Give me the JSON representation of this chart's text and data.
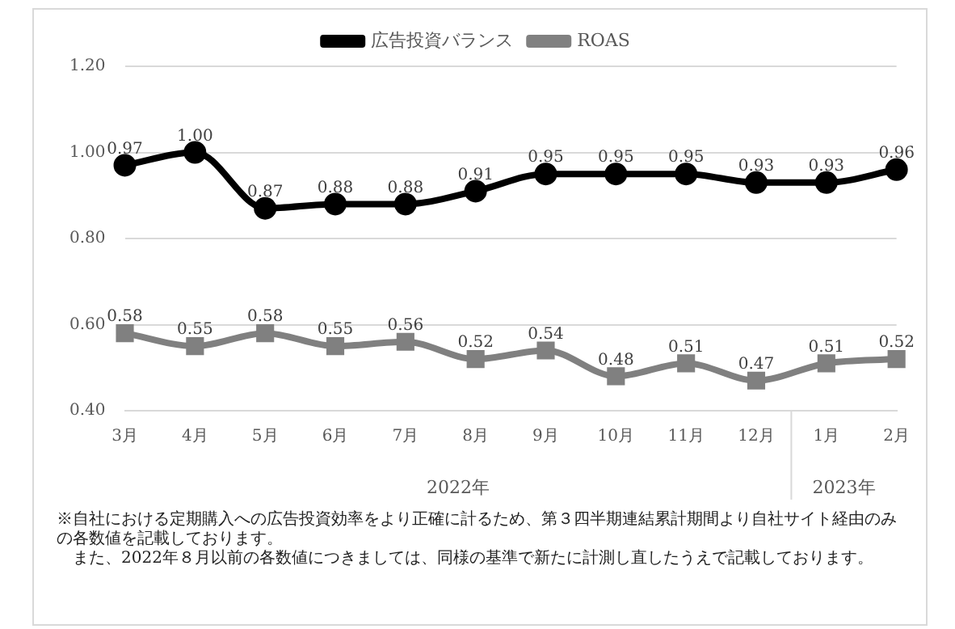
{
  "chart_data": {
    "type": "line",
    "categories": [
      "3月",
      "4月",
      "5月",
      "6月",
      "7月",
      "8月",
      "9月",
      "10月",
      "11月",
      "12月",
      "1月",
      "2月"
    ],
    "series": [
      {
        "name": "広告投資バランス",
        "color": "#000000",
        "marker": "circle",
        "values": [
          0.97,
          1.0,
          0.87,
          0.88,
          0.88,
          0.91,
          0.95,
          0.95,
          0.95,
          0.93,
          0.93,
          0.96
        ],
        "value_labels": [
          "0.97",
          "1.00",
          "0.87",
          "0.88",
          "0.88",
          "0.91",
          "0.95",
          "0.95",
          "0.95",
          "0.93",
          "0.93",
          "0.96"
        ]
      },
      {
        "name": "ROAS",
        "color": "#808080",
        "marker": "square",
        "values": [
          0.58,
          0.55,
          0.58,
          0.55,
          0.56,
          0.52,
          0.54,
          0.48,
          0.51,
          0.47,
          0.51,
          0.52
        ],
        "value_labels": [
          "0.58",
          "0.55",
          "0.58",
          "0.55",
          "0.56",
          "0.52",
          "0.54",
          "0.48",
          "0.51",
          "0.47",
          "0.51",
          "0.52"
        ]
      }
    ],
    "ylim": [
      0.4,
      1.2
    ],
    "yticks": [
      {
        "value": 0.4,
        "label": "0.40"
      },
      {
        "value": 0.6,
        "label": "0.60"
      },
      {
        "value": 0.8,
        "label": "0.80"
      },
      {
        "value": 1.0,
        "label": "1.00"
      },
      {
        "value": 1.2,
        "label": "1.20"
      }
    ],
    "grid": "y",
    "legend": "top",
    "annotations": [
      "2022年",
      "2023年",
      "※自社における定期購入への広告投資効率をより正確に計るため、第３四半期連結累計期間より自社サイト経由のみの各数値を記載しております。",
      "また、2022年８月以前の各数値につきましては、同様の基準で新たに計測し直したうえで記載しております。"
    ]
  }
}
